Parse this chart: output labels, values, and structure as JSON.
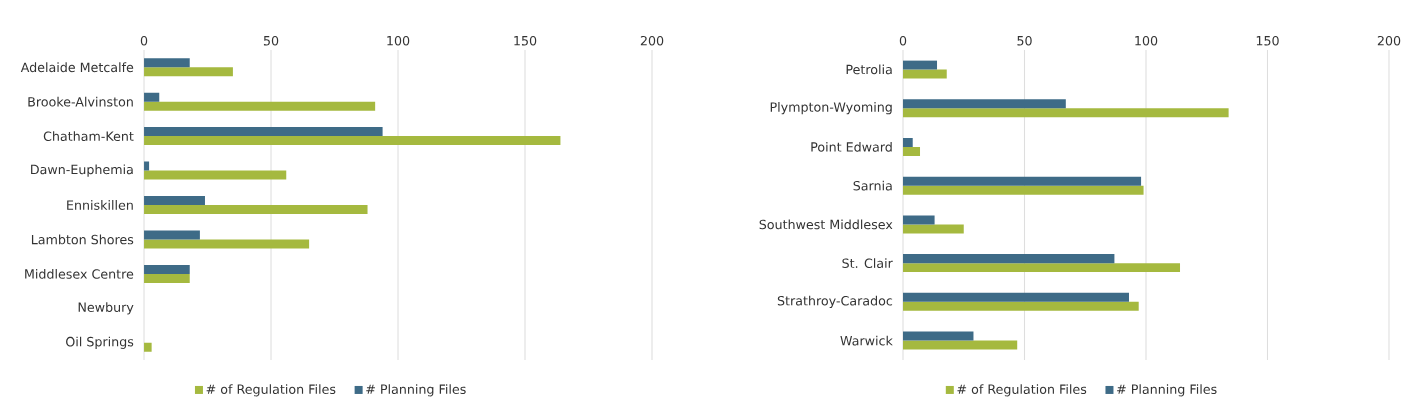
{
  "chart_data": [
    {
      "type": "bar",
      "orientation": "horizontal",
      "categories": [
        "Adelaide Metcalfe",
        "Brooke-Alvinston",
        "Chatham-Kent",
        "Dawn-Euphemia",
        "Enniskillen",
        "Lambton Shores",
        "Middlesex Centre",
        "Newbury",
        "Oil Springs"
      ],
      "series": [
        {
          "name": "# of Regulation Files",
          "color": "#a5b93f",
          "values": [
            35,
            91,
            164,
            56,
            88,
            65,
            18,
            0,
            3
          ]
        },
        {
          "name": "# Planning Files",
          "color": "#3e6b87",
          "values": [
            18,
            6,
            94,
            2,
            24,
            22,
            18,
            0,
            0
          ]
        }
      ],
      "xlim": [
        0,
        200
      ],
      "xticks": [
        0,
        50,
        100,
        150,
        200
      ],
      "grid": "x",
      "legend": "bottom"
    },
    {
      "type": "bar",
      "orientation": "horizontal",
      "categories": [
        "Petrolia",
        "Plympton-Wyoming",
        "Point Edward",
        "Sarnia",
        "Southwest Middlesex",
        "St. Clair",
        "Strathroy-Caradoc",
        "Warwick"
      ],
      "series": [
        {
          "name": "# of Regulation Files",
          "color": "#a5b93f",
          "values": [
            18,
            134,
            7,
            99,
            25,
            114,
            97,
            47
          ]
        },
        {
          "name": "# Planning Files",
          "color": "#3e6b87",
          "values": [
            14,
            67,
            4,
            98,
            13,
            87,
            93,
            29
          ]
        }
      ],
      "xlim": [
        0,
        200
      ],
      "xticks": [
        0,
        50,
        100,
        150,
        200
      ],
      "grid": "x",
      "legend": "bottom"
    }
  ]
}
